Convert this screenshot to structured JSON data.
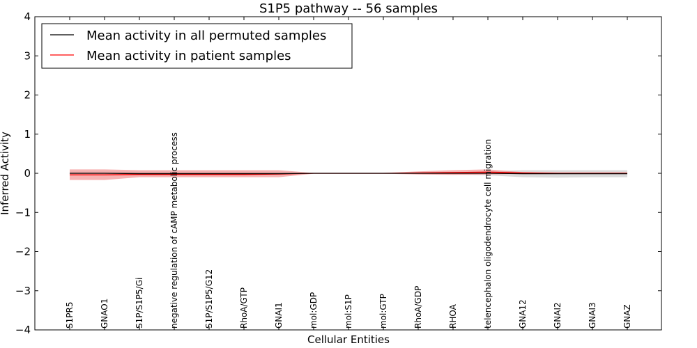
{
  "chart_data": {
    "type": "line",
    "title": "S1P5 pathway -- 56 samples",
    "xlabel": "Cellular Entities",
    "ylabel": "Inferred Activity",
    "ylim": [
      -4,
      4
    ],
    "yticks": [
      4,
      3,
      2,
      1,
      0,
      -1,
      -2,
      -3,
      -4
    ],
    "ytick_labels": [
      "4",
      "3",
      "2",
      "1",
      "0",
      "−1",
      "−2",
      "−3",
      "−4"
    ],
    "categories": [
      "S1PR5",
      "GNAO1",
      "S1P/S1P5/Gi",
      "negative regulation of cAMP metabolic process",
      "S1P/S1P5/G12",
      "RhoA/GTP",
      "GNAI1",
      "mol:GDP",
      "mol:S1P",
      "mol:GTP",
      "RhoA/GDP",
      "RHOA",
      "telencephalon oligodendrocyte cell migration",
      "GNA12",
      "GNAI2",
      "GNAI3",
      "GNAZ"
    ],
    "legend": {
      "position": "upper-left",
      "entries": [
        {
          "label": "Mean activity in all permuted samples",
          "color": "#000000"
        },
        {
          "label": "Mean activity in patient samples",
          "color": "#ff0000"
        }
      ]
    },
    "series": [
      {
        "name": "Mean activity in all permuted samples",
        "color": "#000000",
        "band_color": "#bdbdbd",
        "values": [
          0.0,
          0.0,
          -0.01,
          -0.01,
          -0.01,
          -0.01,
          -0.01,
          0.0,
          0.0,
          0.0,
          0.0,
          0.0,
          0.0,
          -0.01,
          -0.01,
          -0.01,
          -0.01
        ],
        "lower": [
          -0.04,
          -0.04,
          -0.04,
          -0.04,
          -0.04,
          -0.04,
          -0.04,
          -0.01,
          -0.01,
          -0.01,
          -0.02,
          -0.03,
          -0.05,
          -0.1,
          -0.11,
          -0.1,
          -0.1
        ],
        "upper": [
          0.04,
          0.04,
          0.04,
          0.04,
          0.04,
          0.04,
          0.04,
          0.01,
          0.01,
          0.01,
          0.02,
          0.03,
          0.05,
          0.08,
          0.08,
          0.08,
          0.08
        ]
      },
      {
        "name": "Mean activity in patient samples",
        "color": "#ff0000",
        "band_color": "#f08080",
        "values": [
          -0.04,
          -0.04,
          -0.03,
          -0.03,
          -0.03,
          -0.03,
          -0.02,
          0.0,
          0.0,
          0.0,
          0.01,
          0.02,
          0.03,
          0.01,
          0.0,
          0.0,
          0.0
        ],
        "lower": [
          -0.17,
          -0.17,
          -0.1,
          -0.1,
          -0.1,
          -0.1,
          -0.1,
          -0.01,
          -0.01,
          -0.01,
          -0.03,
          -0.04,
          -0.03,
          -0.01,
          -0.01,
          -0.01,
          -0.01
        ],
        "upper": [
          0.1,
          0.1,
          0.08,
          0.08,
          0.08,
          0.08,
          0.08,
          0.01,
          0.01,
          0.01,
          0.05,
          0.08,
          0.1,
          0.03,
          0.02,
          0.02,
          0.02
        ]
      }
    ]
  }
}
